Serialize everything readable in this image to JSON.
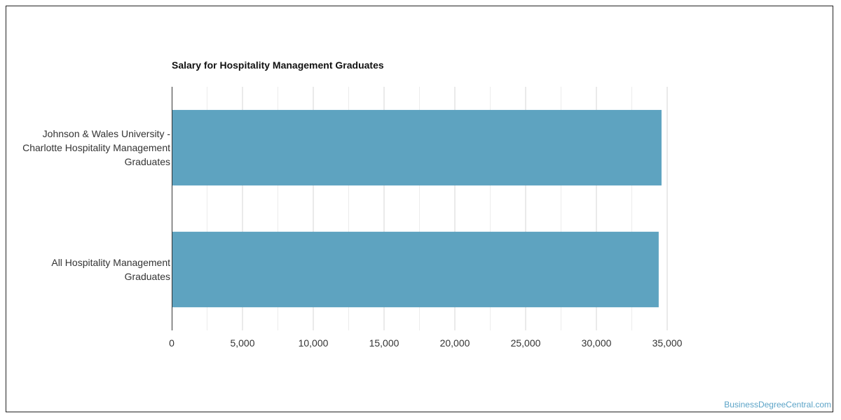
{
  "chart_data": {
    "type": "bar",
    "orientation": "horizontal",
    "title": "Salary for Hospitality Management Graduates",
    "categories": [
      [
        "Johnson & Wales University -",
        "Charlotte Hospitality Management",
        "Graduates"
      ],
      [
        "All Hospitality Management",
        "Graduates"
      ]
    ],
    "values": [
      34600,
      34400
    ],
    "xlim": [
      0,
      35000
    ],
    "xticks": [
      0,
      5000,
      10000,
      15000,
      20000,
      25000,
      30000,
      35000
    ],
    "tick_labels": [
      "0",
      "5,000",
      "10,000",
      "15,000",
      "20,000",
      "25,000",
      "30,000",
      "35,000"
    ],
    "grid": true,
    "bar_color": "#5ea3c0"
  },
  "watermark": "BusinessDegreeCentral.com"
}
